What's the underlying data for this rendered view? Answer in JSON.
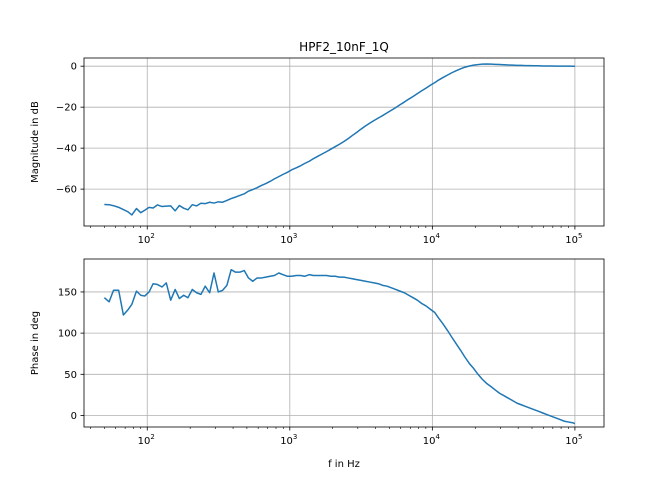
{
  "chart_data": [
    {
      "type": "line",
      "title": "HPF2_10nF_1Q",
      "xlabel": "",
      "ylabel": "Magnitude in dB",
      "xscale": "log",
      "xlim": [
        36,
        160000
      ],
      "ylim": [
        -78,
        4
      ],
      "grid": true,
      "x_ticks": [
        {
          "value": 100,
          "base": "10",
          "exp": "2"
        },
        {
          "value": 1000,
          "base": "10",
          "exp": "3"
        },
        {
          "value": 10000,
          "base": "10",
          "exp": "4"
        },
        {
          "value": 100000,
          "base": "10",
          "exp": "5"
        }
      ],
      "y_ticks": [
        {
          "value": 0,
          "label": "0"
        },
        {
          "value": -20,
          "label": "−20"
        },
        {
          "value": -40,
          "label": "−40"
        },
        {
          "value": -60,
          "label": "−60"
        }
      ],
      "color": "#1f77b4",
      "series": [
        {
          "x": [
            50,
            54,
            58,
            63,
            68,
            73,
            78,
            84,
            90,
            96,
            103,
            110,
            118,
            127,
            136,
            146,
            157,
            168,
            180,
            193,
            207,
            222,
            238,
            255,
            274,
            294,
            315,
            338,
            362,
            388,
            416,
            446,
            479,
            513,
            550,
            590,
            633,
            679,
            728,
            780,
            837,
            897,
            962,
            1030,
            1110,
            1190,
            1270,
            1370,
            1460,
            1570,
            1690,
            1810,
            1940,
            2080,
            2230,
            2390,
            2560,
            2750,
            2950,
            3160,
            3390,
            3640,
            3900,
            4180,
            4480,
            4810,
            5160,
            5530,
            5930,
            6360,
            6820,
            7320,
            7850,
            8420,
            9030,
            9680,
            10400,
            11100,
            11900,
            12800,
            13700,
            14700,
            15800,
            16900,
            18200,
            19500,
            20900,
            22400,
            24000,
            25800,
            27600,
            29600,
            31800,
            34100,
            36600,
            39200,
            42000,
            45100,
            48300,
            51800,
            55600,
            59600,
            63900,
            68500,
            73500,
            78800,
            84500,
            90600,
            97200,
            100000
          ],
          "y": [
            -67.5,
            -67.6,
            -68.1,
            -68.9,
            -70.0,
            -71.0,
            -72.6,
            -69.5,
            -71.5,
            -70.3,
            -68.9,
            -69.2,
            -67.7,
            -68.5,
            -68.3,
            -68.2,
            -70.6,
            -68.0,
            -69.3,
            -70.1,
            -67.6,
            -68.2,
            -66.9,
            -67.1,
            -66.4,
            -66.8,
            -66.2,
            -66.4,
            -65.5,
            -64.6,
            -63.9,
            -63.1,
            -62.3,
            -61.0,
            -60.2,
            -59.3,
            -58.2,
            -57.3,
            -56.2,
            -55.0,
            -53.9,
            -52.8,
            -51.8,
            -50.6,
            -49.6,
            -48.6,
            -47.5,
            -46.4,
            -45.2,
            -44.0,
            -42.8,
            -41.7,
            -40.5,
            -39.3,
            -38.1,
            -36.8,
            -35.4,
            -33.8,
            -32.3,
            -30.7,
            -29.2,
            -27.8,
            -26.5,
            -25.3,
            -24.1,
            -22.8,
            -21.5,
            -20.2,
            -18.8,
            -17.5,
            -16.1,
            -14.8,
            -13.4,
            -12.0,
            -10.7,
            -9.3,
            -8.0,
            -6.7,
            -5.5,
            -4.3,
            -3.2,
            -2.2,
            -1.3,
            -0.5,
            0.1,
            0.5,
            0.8,
            1.0,
            1.1,
            1.0,
            0.9,
            0.8,
            0.7,
            0.6,
            0.5,
            0.4,
            0.4,
            0.3,
            0.3,
            0.2,
            0.2,
            0.1,
            0.1,
            0.1,
            0.05,
            0.03,
            0.02,
            0.01,
            0,
            0
          ]
        }
      ]
    },
    {
      "type": "line",
      "title": "",
      "xlabel": "f in Hz",
      "ylabel": "Phase in deg",
      "xscale": "log",
      "xlim": [
        36,
        160000
      ],
      "ylim": [
        -14,
        190
      ],
      "grid": true,
      "x_ticks": [
        {
          "value": 100,
          "base": "10",
          "exp": "2"
        },
        {
          "value": 1000,
          "base": "10",
          "exp": "3"
        },
        {
          "value": 10000,
          "base": "10",
          "exp": "4"
        },
        {
          "value": 100000,
          "base": "10",
          "exp": "5"
        }
      ],
      "y_ticks": [
        {
          "value": 0,
          "label": "0"
        },
        {
          "value": 50,
          "label": "50"
        },
        {
          "value": 100,
          "label": "100"
        },
        {
          "value": 150,
          "label": "150"
        }
      ],
      "color": "#1f77b4",
      "series": [
        {
          "x": [
            50,
            54,
            58,
            63,
            68,
            73,
            78,
            84,
            90,
            96,
            103,
            110,
            118,
            127,
            136,
            146,
            157,
            168,
            180,
            193,
            207,
            222,
            238,
            255,
            274,
            294,
            315,
            338,
            362,
            388,
            416,
            446,
            479,
            513,
            550,
            590,
            633,
            679,
            728,
            780,
            837,
            897,
            962,
            1030,
            1110,
            1190,
            1270,
            1370,
            1460,
            1570,
            1690,
            1810,
            1940,
            2080,
            2230,
            2390,
            2560,
            2750,
            2950,
            3160,
            3390,
            3640,
            3900,
            4180,
            4480,
            4810,
            5160,
            5530,
            5930,
            6360,
            6820,
            7320,
            7850,
            8420,
            9030,
            9680,
            10400,
            11100,
            11900,
            12800,
            13700,
            14700,
            15800,
            16900,
            18200,
            19500,
            20900,
            22400,
            24000,
            25800,
            27600,
            29600,
            31800,
            34100,
            36600,
            39200,
            42000,
            45100,
            48300,
            51800,
            55600,
            59600,
            63900,
            68500,
            73500,
            78800,
            84500,
            90600,
            97200,
            100000
          ],
          "y": [
            143,
            138,
            152,
            152,
            122,
            128,
            135,
            151,
            146,
            145,
            150,
            160,
            159,
            156,
            161,
            140,
            153,
            142,
            146,
            143,
            153,
            149,
            147,
            157,
            149,
            173,
            150,
            152,
            158,
            177,
            174,
            174,
            176,
            167,
            163,
            167,
            167,
            168,
            169,
            170,
            173,
            171,
            169,
            169,
            170,
            170,
            169,
            171,
            170,
            170,
            170,
            170,
            169,
            169,
            168,
            168,
            167,
            166,
            165,
            164,
            163,
            162,
            161,
            160,
            158,
            157,
            155,
            153,
            151,
            149,
            146,
            143,
            140,
            136,
            133,
            129,
            125,
            118,
            111,
            103,
            95,
            87,
            79,
            71,
            63,
            57,
            50,
            44,
            39,
            35,
            31,
            27,
            24,
            21,
            18,
            15,
            13,
            11,
            9,
            7,
            5,
            3,
            1,
            -1,
            -3,
            -5,
            -7,
            -8,
            -9,
            -10
          ]
        }
      ]
    }
  ]
}
